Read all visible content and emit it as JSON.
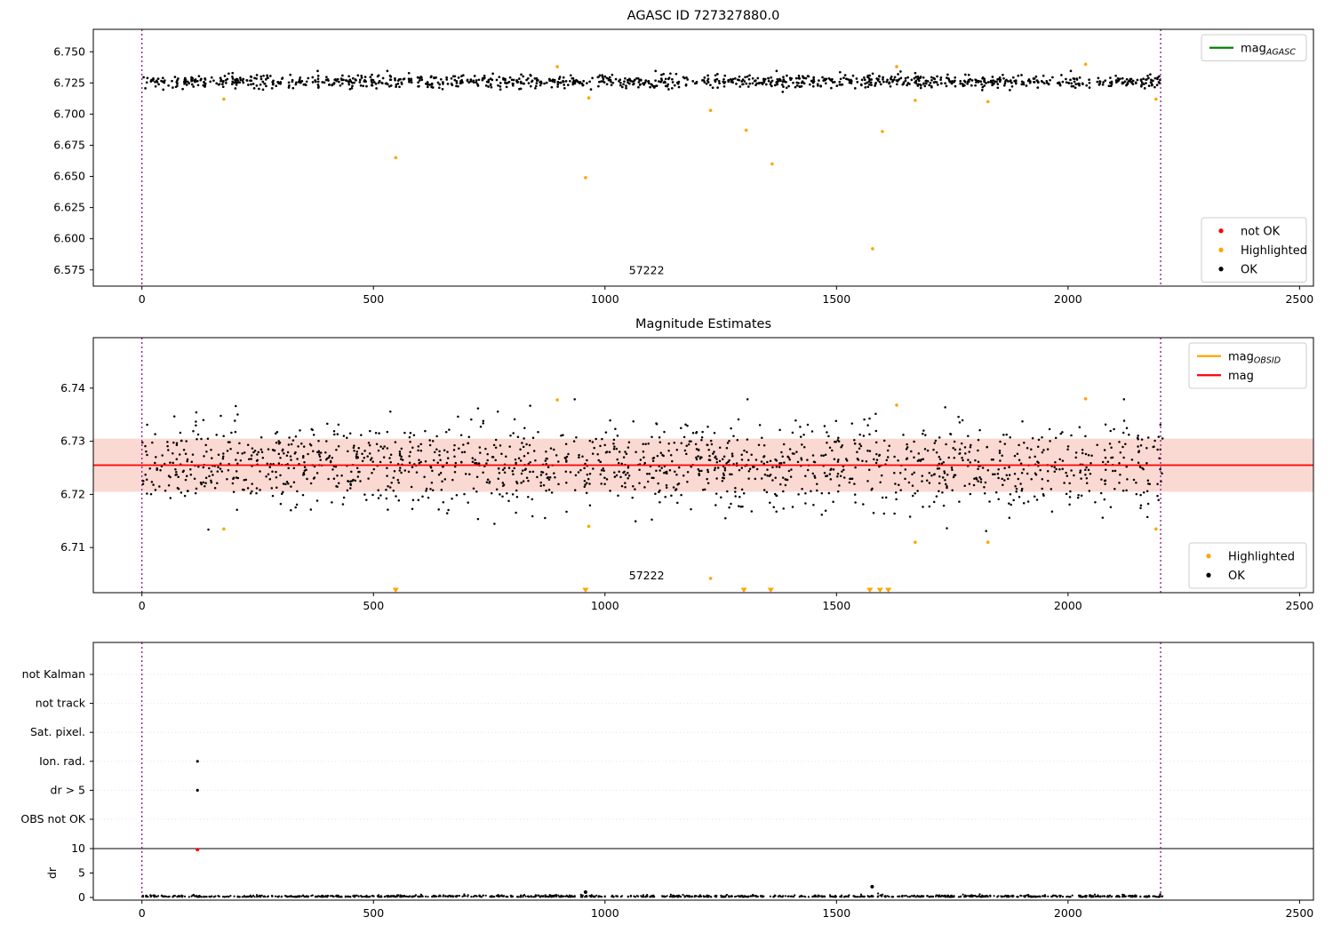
{
  "page": {
    "background": "#ffffff"
  },
  "colors": {
    "ok": "#000000",
    "highlighted": "#ffa500",
    "not_ok": "#ff0000",
    "mag_agasc_line": "#008000",
    "mag_line": "#ff0000",
    "mag_band": "#fbd9d3",
    "obs_boundary": "#800080",
    "frame": "#000000"
  },
  "chart_data": [
    {
      "type": "scatter",
      "title": "AGASC ID 727327880.0",
      "xlim": [
        -105,
        2530
      ],
      "ylim": [
        6.562,
        6.768
      ],
      "xticks": [
        0,
        500,
        1000,
        1500,
        2000,
        2500
      ],
      "xtick_labels": [
        "0",
        "500",
        "1000",
        "1500",
        "2000",
        "2500"
      ],
      "yticks": [
        6.575,
        6.6,
        6.625,
        6.65,
        6.675,
        6.7,
        6.725,
        6.75
      ],
      "ytick_labels": [
        "6.575",
        "6.600",
        "6.625",
        "6.650",
        "6.675",
        "6.700",
        "6.725",
        "6.750"
      ],
      "vlines": {
        "xs": [
          0,
          2200
        ],
        "color": "#800080"
      },
      "annotation": {
        "text": "57222",
        "x": 1090,
        "y": 6.5715
      },
      "series_ok": {
        "name": "OK",
        "color": "#000000",
        "n": 1100,
        "x_min": 0,
        "x_max": 2205,
        "y_mean": 6.7262,
        "y_std": 0.0027,
        "seed": 101
      },
      "series_highlighted": {
        "name": "Highlighted",
        "color": "#ffa500",
        "points": [
          [
            177,
            6.712
          ],
          [
            548,
            6.665
          ],
          [
            897,
            6.738
          ],
          [
            958,
            6.649
          ],
          [
            965,
            6.713
          ],
          [
            1228,
            6.703
          ],
          [
            1305,
            6.687
          ],
          [
            1361,
            6.66
          ],
          [
            1578,
            6.592
          ],
          [
            1599,
            6.686
          ],
          [
            1630,
            6.738
          ],
          [
            1670,
            6.711
          ],
          [
            1827,
            6.71
          ],
          [
            2038,
            6.74
          ],
          [
            2190,
            6.712
          ]
        ]
      },
      "legend_top": {
        "entries": [
          {
            "label": "mag",
            "sub": "AGASC",
            "marker": "line",
            "color": "#008000"
          }
        ]
      },
      "legend_mid": {
        "entries": [
          {
            "label": "not OK",
            "marker": "dot",
            "color": "#ff0000"
          },
          {
            "label": "Highlighted",
            "marker": "dot",
            "color": "#ffa500"
          },
          {
            "label": "OK",
            "marker": "dot",
            "color": "#000000"
          }
        ]
      }
    },
    {
      "type": "scatter",
      "title": "Magnitude Estimates",
      "xlim": [
        -105,
        2530
      ],
      "ylim": [
        6.7015,
        6.7495
      ],
      "xticks": [
        0,
        500,
        1000,
        1500,
        2000,
        2500
      ],
      "xtick_labels": [
        "0",
        "500",
        "1000",
        "1500",
        "2000",
        "2500"
      ],
      "yticks": [
        6.71,
        6.72,
        6.73,
        6.74
      ],
      "ytick_labels": [
        "6.71",
        "6.72",
        "6.73",
        "6.74"
      ],
      "band": {
        "y_low": 6.7205,
        "y_high": 6.7305,
        "color": "#fbd9d3"
      },
      "mag_line": {
        "y": 6.7255,
        "color": "#ff0000"
      },
      "vlines": {
        "xs": [
          0,
          2200
        ],
        "color": "#800080"
      },
      "annotation": {
        "text": "57222",
        "x": 1090,
        "y": 6.704
      },
      "series_ok": {
        "name": "OK",
        "color": "#000000",
        "n": 1500,
        "x_min": 0,
        "x_max": 2205,
        "y_mean": 6.7255,
        "y_std": 0.004,
        "seed": 202
      },
      "series_highlighted": {
        "name": "Highlighted",
        "color": "#ffa500",
        "points": [
          [
            177,
            6.7135
          ],
          [
            897,
            6.7378
          ],
          [
            965,
            6.714
          ],
          [
            1228,
            6.7042
          ],
          [
            1630,
            6.7368
          ],
          [
            1670,
            6.711
          ],
          [
            1827,
            6.711
          ],
          [
            2038,
            6.738
          ],
          [
            2190,
            6.7135
          ]
        ],
        "clipped_x": [
          548,
          958,
          1300,
          1358,
          1572,
          1594,
          1612
        ]
      },
      "legend_top": {
        "entries": [
          {
            "label": "mag",
            "sub": "OBSID",
            "marker": "line",
            "color": "#ffa500"
          },
          {
            "label": "mag",
            "sub": "",
            "marker": "line",
            "color": "#ff0000"
          }
        ]
      },
      "legend_bottom": {
        "entries": [
          {
            "label": "Highlighted",
            "marker": "dot",
            "color": "#ffa500"
          },
          {
            "label": "OK",
            "marker": "dot",
            "color": "#000000"
          }
        ]
      }
    },
    {
      "type": "flags",
      "title": "",
      "xlim": [
        -105,
        2530
      ],
      "xticks": [
        0,
        500,
        1000,
        1500,
        2000,
        2500
      ],
      "xtick_labels": [
        "0",
        "500",
        "1000",
        "1500",
        "2000",
        "2500"
      ],
      "flags": [
        "not Kalman",
        "not track",
        "Sat. pixel.",
        "Ion. rad.",
        "dr > 5",
        "OBS not OK"
      ],
      "flag_points": [
        {
          "x": 120,
          "flag": "Ion. rad."
        },
        {
          "x": 120,
          "flag": "dr > 5"
        }
      ],
      "dr_axis": {
        "label": "dr",
        "ticks": [
          0,
          5,
          10
        ],
        "tick_labels": [
          "0",
          "5",
          "10"
        ],
        "hline_y": 10
      },
      "dr_outliers": [
        {
          "x": 120,
          "y": 9.8,
          "color": "#ff0000"
        },
        {
          "x": 958,
          "y": 1.1,
          "color": "#000000"
        },
        {
          "x": 1577,
          "y": 2.2,
          "color": "#000000"
        }
      ],
      "dr_series": {
        "color": "#000000",
        "n": 1100,
        "x_min": 0,
        "x_max": 2205,
        "seed": 303
      },
      "vlines": {
        "xs": [
          0,
          2200
        ],
        "color": "#800080"
      }
    }
  ]
}
